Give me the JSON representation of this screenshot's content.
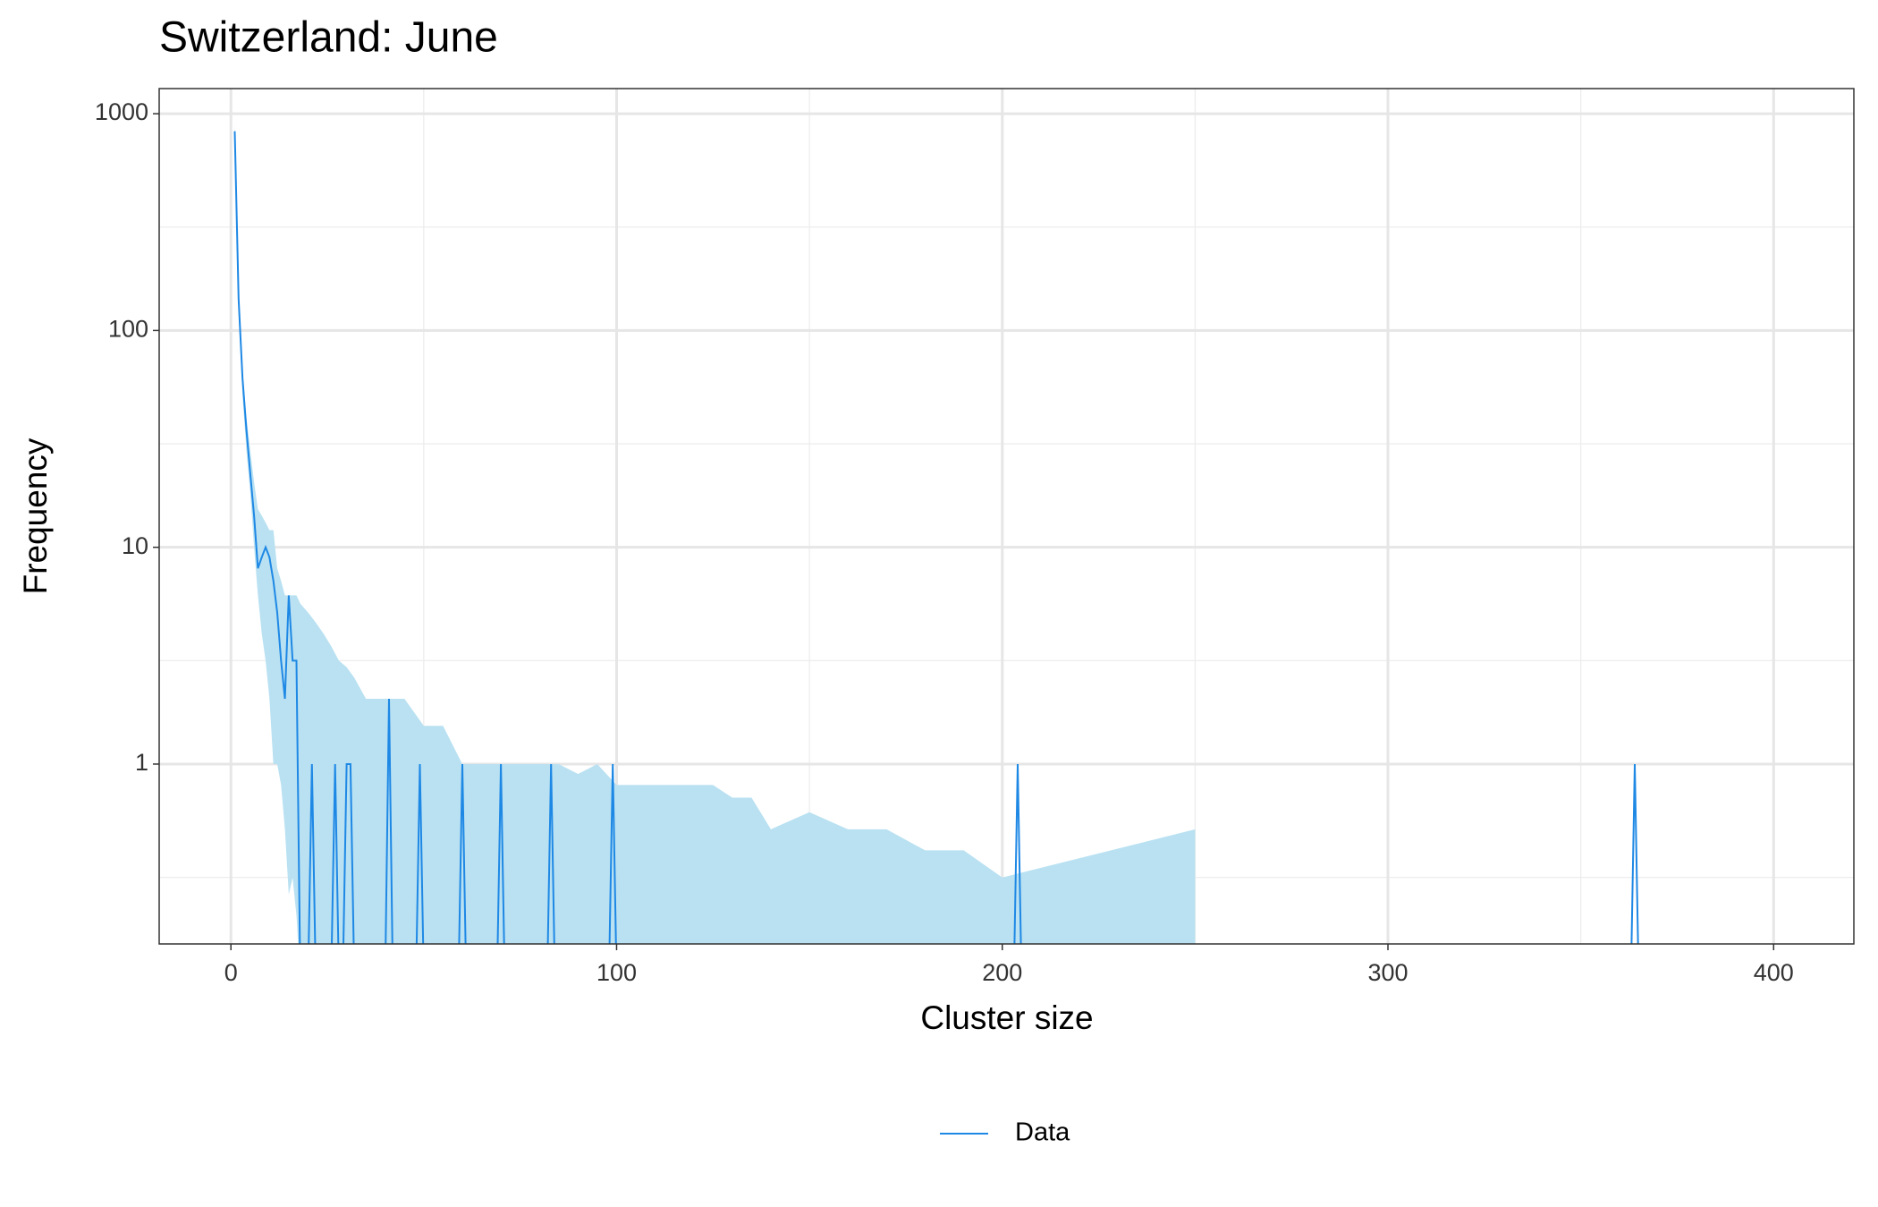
{
  "chart_data": {
    "type": "line",
    "title": "Switzerland: June",
    "x_label": "Cluster size",
    "y_label": "Frequency",
    "log_y": true,
    "grid": true,
    "legend": "bottom",
    "xlim": [
      -18.6,
      420.8
    ],
    "xticks": [
      0,
      100,
      200,
      300,
      400
    ],
    "xminorticks": [
      50,
      150,
      250,
      350
    ],
    "ylim": [
      0.148,
      1306
    ],
    "yticks": [
      1,
      10,
      100,
      1000
    ],
    "yminorticks": [
      0.3,
      3,
      30,
      300
    ],
    "series": [
      {
        "name": "Data",
        "color": "#1e88e5",
        "x": [
          1,
          2,
          3,
          4,
          5,
          6,
          7,
          8,
          9,
          10,
          11,
          12,
          13,
          14,
          15,
          16,
          17,
          18,
          20,
          21,
          22,
          26,
          27,
          28,
          29,
          30,
          31,
          32,
          40,
          41,
          42,
          48,
          49,
          50,
          59,
          60,
          61,
          69,
          70,
          71,
          82,
          83,
          84,
          98,
          99,
          100,
          203,
          204,
          205,
          363,
          364,
          365
        ],
        "values": [
          830,
          140,
          60,
          35,
          22,
          14,
          8,
          9,
          10,
          9,
          7,
          5,
          3,
          2,
          6,
          3,
          3,
          0,
          0,
          1,
          0,
          0,
          1,
          0,
          0,
          1,
          1,
          0,
          0,
          2,
          0,
          0,
          1,
          0,
          0,
          1,
          0,
          0,
          1,
          0,
          0,
          1,
          0,
          0,
          1,
          0,
          0,
          1,
          0,
          0,
          1,
          0
        ]
      }
    ],
    "band": {
      "color": "#b9e1f2",
      "x": [
        1,
        2,
        3,
        4,
        5,
        6,
        7,
        8,
        9,
        10,
        11,
        12,
        13,
        14,
        15,
        16,
        17,
        18,
        20,
        22,
        24,
        26,
        28,
        30,
        32,
        35,
        40,
        45,
        50,
        55,
        60,
        65,
        70,
        75,
        80,
        85,
        90,
        95,
        100,
        105,
        110,
        115,
        120,
        125,
        130,
        135,
        140,
        150,
        160,
        170,
        180,
        190,
        200,
        250
      ],
      "upper": [
        900,
        150,
        65,
        40,
        28,
        20,
        15,
        14,
        13,
        12,
        12,
        8,
        7,
        6,
        6,
        6,
        6,
        5.5,
        5,
        4.5,
        4,
        3.5,
        3,
        2.8,
        2.5,
        2,
        2,
        2,
        1.5,
        1.5,
        1,
        1,
        1,
        1,
        1,
        1,
        0.9,
        1,
        0.8,
        0.8,
        0.8,
        0.8,
        0.8,
        0.8,
        0.7,
        0.7,
        0.5,
        0.6,
        0.5,
        0.5,
        0.4,
        0.4,
        0.3,
        0.5
      ],
      "lower": [
        700,
        120,
        50,
        28,
        18,
        10,
        6,
        4,
        3,
        2,
        1,
        1,
        0.8,
        0.5,
        0.25,
        0.3,
        0.2,
        0,
        0,
        0,
        0,
        0,
        0,
        0,
        0,
        0,
        0,
        0,
        0,
        0,
        0,
        0,
        0,
        0,
        0,
        0,
        0,
        0,
        0,
        0,
        0,
        0,
        0,
        0,
        0,
        0,
        0,
        0,
        0,
        0,
        0,
        0,
        0,
        0
      ]
    }
  }
}
